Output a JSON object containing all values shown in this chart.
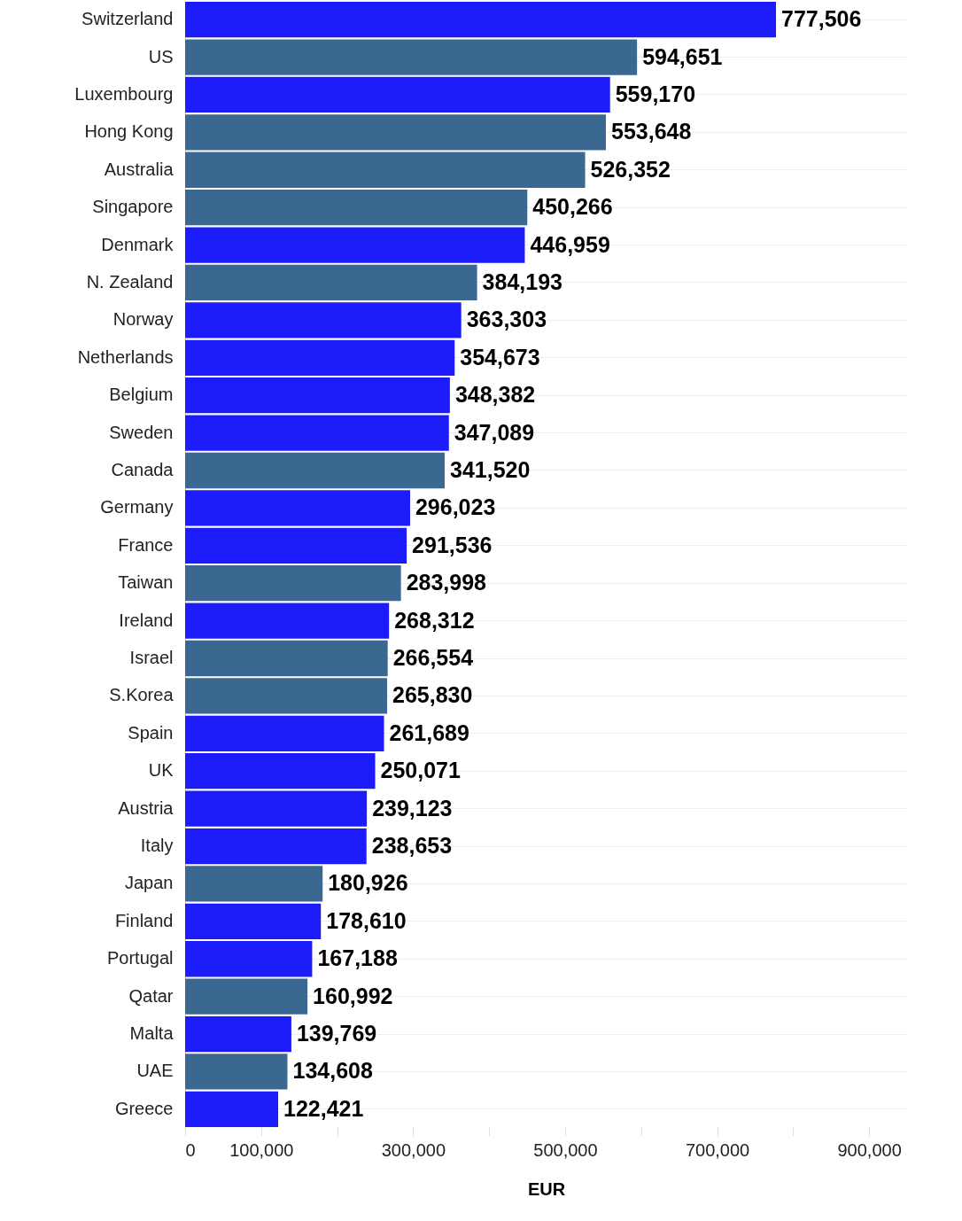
{
  "chart_data": {
    "type": "bar",
    "orientation": "horizontal",
    "xlabel": "EUR",
    "categories": [
      "Switzerland",
      "US",
      "Luxembourg",
      "Hong Kong",
      "Australia",
      "Singapore",
      "Denmark",
      "N. Zealand",
      "Norway",
      "Netherlands",
      "Belgium",
      "Sweden",
      "Canada",
      "Germany",
      "France",
      "Taiwan",
      "Ireland",
      "Israel",
      "S.Korea",
      "Spain",
      "UK",
      "Austria",
      "Italy",
      "Japan",
      "Finland",
      "Portugal",
      "Qatar",
      "Malta",
      "UAE",
      "Greece"
    ],
    "values": [
      777506,
      594651,
      559170,
      553648,
      526352,
      450266,
      446959,
      384193,
      363303,
      354673,
      348382,
      347089,
      341520,
      296023,
      291536,
      283998,
      268312,
      266554,
      265830,
      261689,
      250071,
      239123,
      238653,
      180926,
      178610,
      167188,
      160992,
      139769,
      134608,
      122421
    ],
    "colors": [
      "#1c1cfa",
      "#3a6891",
      "#1c1cfa",
      "#3a6891",
      "#3a6891",
      "#3a6891",
      "#1c1cfa",
      "#3a6891",
      "#1c1cfa",
      "#1c1cfa",
      "#1c1cfa",
      "#1c1cfa",
      "#3a6891",
      "#1c1cfa",
      "#1c1cfa",
      "#3a6891",
      "#1c1cfa",
      "#3a6891",
      "#3a6891",
      "#1c1cfa",
      "#1c1cfa",
      "#1c1cfa",
      "#1c1cfa",
      "#3a6891",
      "#1c1cfa",
      "#1c1cfa",
      "#3a6891",
      "#1c1cfa",
      "#3a6891",
      "#1c1cfa"
    ],
    "xlim": [
      0,
      950000
    ],
    "xticks": [
      0,
      {
        "value": 100000,
        "label": "100,000"
      },
      {
        "value": 200000,
        "label": null
      },
      {
        "value": 300000,
        "label": "300,000"
      },
      {
        "value": 400000,
        "label": null
      },
      {
        "value": 500000,
        "label": "500,000"
      },
      {
        "value": 600000,
        "label": null
      },
      {
        "value": 700000,
        "label": "700,000"
      },
      {
        "value": 800000,
        "label": null
      },
      {
        "value": 900000,
        "label": "900,000"
      }
    ],
    "value_labels": [
      "777,506",
      "594,651",
      "559,170",
      "553,648",
      "526,352",
      "450,266",
      "446,959",
      "384,193",
      "363,303",
      "354,673",
      "348,382",
      "347,089",
      "341,520",
      "296,023",
      "291,536",
      "283,998",
      "268,312",
      "266,554",
      "265,830",
      "261,689",
      "250,071",
      "239,123",
      "238,653",
      "180,926",
      "178,610",
      "167,188",
      "160,992",
      "139,769",
      "134,608",
      "122,421"
    ],
    "grid": "y"
  }
}
